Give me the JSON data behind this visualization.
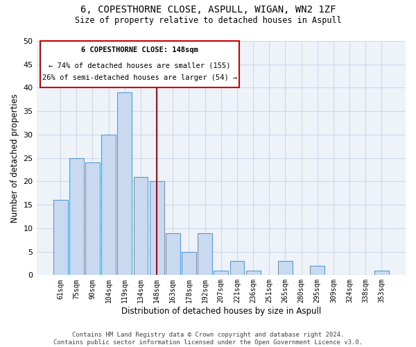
{
  "title": "6, COPESTHORNE CLOSE, ASPULL, WIGAN, WN2 1ZF",
  "subtitle": "Size of property relative to detached houses in Aspull",
  "xlabel": "Distribution of detached houses by size in Aspull",
  "ylabel": "Number of detached properties",
  "categories": [
    "61sqm",
    "75sqm",
    "90sqm",
    "104sqm",
    "119sqm",
    "134sqm",
    "148sqm",
    "163sqm",
    "178sqm",
    "192sqm",
    "207sqm",
    "221sqm",
    "236sqm",
    "251sqm",
    "265sqm",
    "280sqm",
    "295sqm",
    "309sqm",
    "324sqm",
    "338sqm",
    "353sqm"
  ],
  "values": [
    16,
    25,
    24,
    30,
    39,
    21,
    20,
    9,
    5,
    9,
    1,
    3,
    1,
    0,
    3,
    0,
    2,
    0,
    0,
    0,
    1
  ],
  "bar_color": "#c9d9f0",
  "bar_edge_color": "#5b9bd5",
  "highlight_index": 6,
  "ylim": [
    0,
    50
  ],
  "yticks": [
    0,
    5,
    10,
    15,
    20,
    25,
    30,
    35,
    40,
    45,
    50
  ],
  "annotation_title": "6 COPESTHORNE CLOSE: 148sqm",
  "annotation_line1": "← 74% of detached houses are smaller (155)",
  "annotation_line2": "26% of semi-detached houses are larger (54) →",
  "annotation_box_color": "#ffffff",
  "annotation_box_edge": "#cc0000",
  "vline_color": "#cc0000",
  "grid_color": "#d0d8e8",
  "background_color": "#eef2f9",
  "footer_line1": "Contains HM Land Registry data © Crown copyright and database right 2024.",
  "footer_line2": "Contains public sector information licensed under the Open Government Licence v3.0."
}
